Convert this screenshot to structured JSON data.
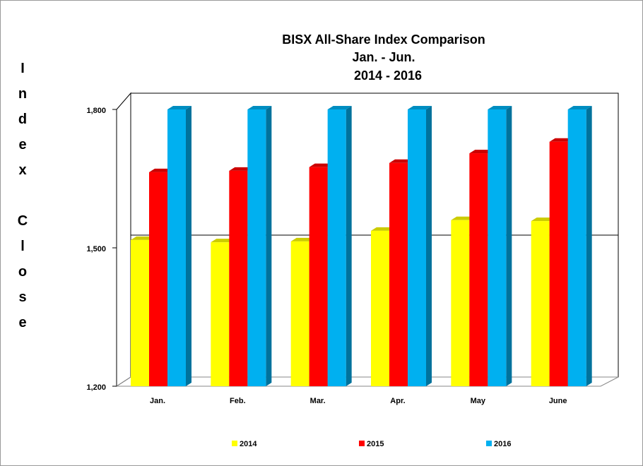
{
  "chart_data": {
    "type": "bar3d",
    "title": "BISX All-Share Index Comparison",
    "subtitle": [
      "Jan. - Jun.",
      "2014 - 2016"
    ],
    "y_label": "Index Close",
    "categories": [
      "Jan.",
      "Feb.",
      "Mar.",
      "Apr.",
      "May",
      "June"
    ],
    "series": [
      {
        "name": "2014",
        "color": "#ffff00",
        "values": [
          1517,
          1512,
          1514,
          1537,
          1560,
          1558
        ]
      },
      {
        "name": "2015",
        "color": "#ff0000",
        "values": [
          1664,
          1667,
          1675,
          1684,
          1705,
          1730
        ]
      },
      {
        "name": "2016",
        "color": "#00b0f0",
        "values": [
          1800,
          1800,
          1800,
          1800,
          1800,
          1800
        ]
      }
    ],
    "ylim": [
      1200,
      1800
    ],
    "yticks": [
      {
        "value": 1200,
        "label": "1,200"
      },
      {
        "value": 1500,
        "label": "1,500"
      },
      {
        "value": 1800,
        "label": "1,800"
      }
    ],
    "grid": true
  }
}
